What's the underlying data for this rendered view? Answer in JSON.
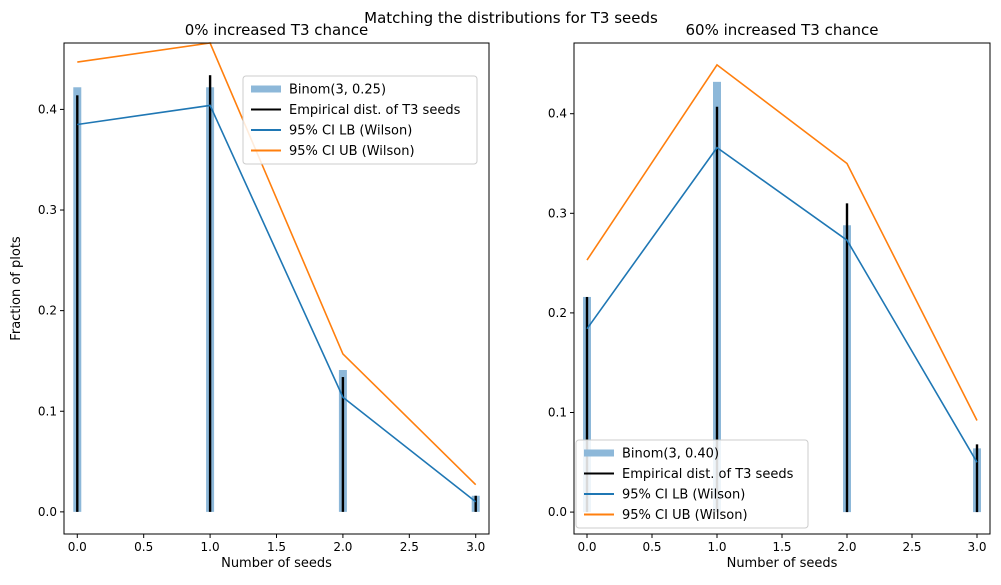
{
  "suptitle": "Matching the distributions for T3 seeds",
  "chart_data": [
    {
      "type": "bar",
      "title": "0% increased T3 chance",
      "xlabel": "Number of seeds",
      "ylabel": "Fraction of plots",
      "xlim": [
        -0.1,
        3.1
      ],
      "ylim": [
        -0.022,
        0.466
      ],
      "xticks": [
        "0.0",
        "0.5",
        "1.0",
        "1.5",
        "2.0",
        "2.5",
        "3.0"
      ],
      "yticks": [
        "0.0",
        "0.1",
        "0.2",
        "0.3",
        "0.4"
      ],
      "legend_loc": "upper right",
      "x": [
        0,
        1,
        2,
        3
      ],
      "binom": {
        "name": "Binom(3, 0.25)",
        "color": "#8db8d9",
        "values": [
          0.422,
          0.422,
          0.141,
          0.016
        ]
      },
      "empirical": {
        "name": "Empirical dist. of T3 seeds",
        "color": "#000000",
        "values": [
          0.414,
          0.434,
          0.134,
          0.016
        ]
      },
      "ci_lb": {
        "name": "95% CI LB (Wilson)",
        "color": "#1f77b4",
        "values": [
          0.385,
          0.404,
          0.114,
          0.01
        ]
      },
      "ci_ub": {
        "name": "95% CI UB (Wilson)",
        "color": "#ff7f0e",
        "values": [
          0.447,
          0.466,
          0.157,
          0.027
        ]
      }
    },
    {
      "type": "bar",
      "title": "60% increased T3 chance",
      "xlabel": "Number of seeds",
      "ylabel": "",
      "xlim": [
        -0.1,
        3.1
      ],
      "ylim": [
        -0.022,
        0.471
      ],
      "xticks": [
        "0.0",
        "0.5",
        "1.0",
        "1.5",
        "2.0",
        "2.5",
        "3.0"
      ],
      "yticks": [
        "0.0",
        "0.1",
        "0.2",
        "0.3",
        "0.4"
      ],
      "legend_loc": "lower left",
      "x": [
        0,
        1,
        2,
        3
      ],
      "binom": {
        "name": "Binom(3, 0.40)",
        "color": "#8db8d9",
        "values": [
          0.216,
          0.432,
          0.288,
          0.064
        ]
      },
      "empirical": {
        "name": "Empirical dist. of T3 seeds",
        "color": "#000000",
        "values": [
          0.216,
          0.407,
          0.31,
          0.068
        ]
      },
      "ci_lb": {
        "name": "95% CI LB (Wilson)",
        "color": "#1f77b4",
        "values": [
          0.184,
          0.366,
          0.273,
          0.05
        ]
      },
      "ci_ub": {
        "name": "95% CI UB (Wilson)",
        "color": "#ff7f0e",
        "values": [
          0.253,
          0.449,
          0.35,
          0.092
        ]
      }
    }
  ]
}
